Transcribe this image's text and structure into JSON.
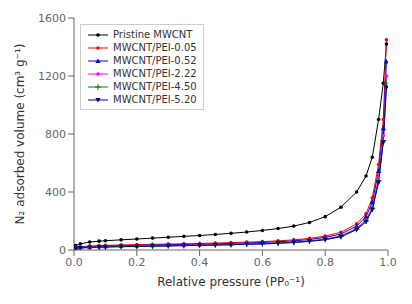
{
  "chart_data": {
    "type": "line",
    "title": "",
    "xlabel": "Relative pressure (PP₀⁻¹)",
    "ylabel": "N₂ adsorbed volume (cm³ g⁻¹)",
    "xlim": [
      0.0,
      1.0
    ],
    "ylim": [
      0,
      1600
    ],
    "xticks": [
      {
        "value": 0.0,
        "label": "0.0"
      },
      {
        "value": 0.2,
        "label": "0.2"
      },
      {
        "value": 0.4,
        "label": "0.4"
      },
      {
        "value": 0.6,
        "label": "0.6"
      },
      {
        "value": 0.8,
        "label": "0.8"
      },
      {
        "value": 1.0,
        "label": "1.0"
      }
    ],
    "yticks": [
      0,
      400,
      800,
      1200,
      1600
    ],
    "grid": false,
    "legend": "upper left",
    "x": [
      0.005,
      0.02,
      0.05,
      0.08,
      0.1,
      0.15,
      0.2,
      0.25,
      0.3,
      0.35,
      0.4,
      0.45,
      0.5,
      0.55,
      0.6,
      0.65,
      0.7,
      0.75,
      0.8,
      0.85,
      0.9,
      0.93,
      0.95,
      0.97,
      0.985,
      0.995
    ],
    "series": [
      {
        "name": "Pristine MWCNT",
        "color": "#000000",
        "marker": "point",
        "values": [
          30,
          42,
          55,
          61,
          64,
          70,
          76,
          82,
          88,
          94,
          100,
          107,
          115,
          124,
          135,
          148,
          165,
          190,
          230,
          295,
          400,
          510,
          640,
          900,
          1150,
          1420
        ]
      },
      {
        "name": "MWCNT/PEI-0.05",
        "color": "#ff0000",
        "marker": "point",
        "values": [
          18,
          22,
          27,
          30,
          32,
          35,
          37,
          39,
          41,
          43,
          45,
          48,
          51,
          54,
          58,
          63,
          70,
          80,
          96,
          122,
          180,
          250,
          360,
          590,
          900,
          1450
        ]
      },
      {
        "name": "MWCNT/PEI-0.52",
        "color": "#0000dd",
        "marker": "triangle-up",
        "values": [
          16,
          19,
          23,
          26,
          27,
          30,
          32,
          34,
          36,
          38,
          40,
          42,
          45,
          48,
          52,
          57,
          63,
          72,
          87,
          110,
          165,
          230,
          330,
          545,
          840,
          1300
        ]
      },
      {
        "name": "MWCNT/PEI-2.22",
        "color": "#ff00ff",
        "marker": "point",
        "values": [
          14,
          17,
          20,
          22,
          23,
          26,
          27,
          29,
          31,
          33,
          35,
          37,
          39,
          42,
          45,
          49,
          55,
          63,
          75,
          97,
          150,
          208,
          295,
          500,
          790,
          1200
        ]
      },
      {
        "name": "MWCNT/PEI-4.50",
        "color": "#008000",
        "marker": "plus",
        "values": [
          13,
          15,
          18,
          20,
          21,
          24,
          25,
          27,
          29,
          31,
          33,
          35,
          37,
          40,
          43,
          47,
          53,
          61,
          73,
          94,
          143,
          200,
          285,
          478,
          755,
          1150
        ]
      },
      {
        "name": "MWCNT/PEI-5.20",
        "color": "#00008b",
        "marker": "triangle-down",
        "values": [
          12,
          14,
          17,
          19,
          20,
          23,
          24,
          26,
          28,
          30,
          32,
          34,
          36,
          39,
          42,
          46,
          51,
          59,
          71,
          91,
          140,
          195,
          278,
          465,
          740,
          1120
        ]
      }
    ]
  }
}
